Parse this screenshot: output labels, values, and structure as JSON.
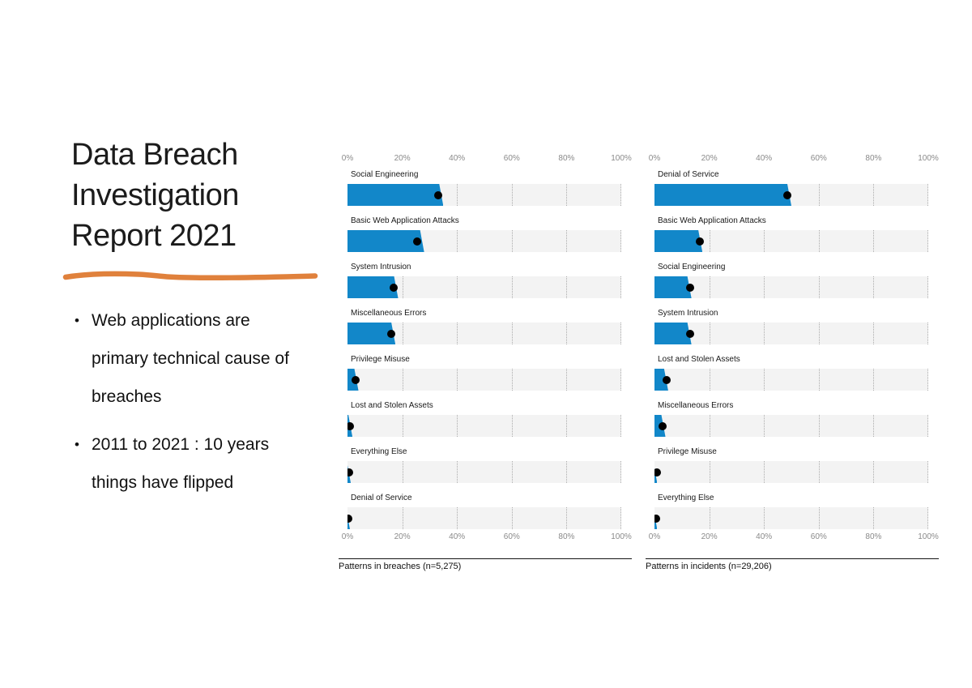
{
  "slide": {
    "title": "Data Breach\nInvestigation\nReport 2021",
    "underline_color": "#E0813C",
    "bullets": [
      {
        "marker": "•",
        "text": "Web applications are\nprimary technical cause of\nbreaches"
      },
      {
        "marker": "•",
        "text": "2011 to 2021 : 10 years\nthings have flipped"
      }
    ]
  },
  "chart_data": [
    {
      "type": "bar",
      "orientation": "horizontal",
      "caption": "Patterns in breaches (n=5,275)",
      "n": "5,275",
      "axis_ticks": [
        "0%",
        "20%",
        "40%",
        "60%",
        "80%",
        "100%"
      ],
      "xlim": [
        0,
        100
      ],
      "grid": "dotted verticals at 20/40/60/80/100",
      "bar_color": "#1287C9",
      "dot_color": "#000000",
      "track_color": "#f3f3f3",
      "rows": [
        {
          "label": "Social Engineering",
          "bar_pct": 35,
          "dot_pct": 33
        },
        {
          "label": "Basic Web Application Attacks",
          "bar_pct": 28,
          "dot_pct": 25.5
        },
        {
          "label": "System Intrusion",
          "bar_pct": 18.5,
          "dot_pct": 17
        },
        {
          "label": "Miscellaneous Errors",
          "bar_pct": 17.5,
          "dot_pct": 16
        },
        {
          "label": "Privilege Misuse",
          "bar_pct": 4,
          "dot_pct": 3
        },
        {
          "label": "Lost and Stolen Assets",
          "bar_pct": 1.8,
          "dot_pct": 1
        },
        {
          "label": "Everything Else",
          "bar_pct": 1.2,
          "dot_pct": 0.7
        },
        {
          "label": "Denial of Service",
          "bar_pct": 0.6,
          "dot_pct": 0.4
        }
      ]
    },
    {
      "type": "bar",
      "orientation": "horizontal",
      "caption": "Patterns in incidents (n=29,206)",
      "n": "29,206",
      "axis_ticks": [
        "0%",
        "20%",
        "40%",
        "60%",
        "80%",
        "100%"
      ],
      "xlim": [
        0,
        100
      ],
      "grid": "dotted verticals at 20/40/60/80/100",
      "bar_color": "#1287C9",
      "dot_color": "#000000",
      "track_color": "#f3f3f3",
      "rows": [
        {
          "label": "Denial of Service",
          "bar_pct": 50,
          "dot_pct": 48.5
        },
        {
          "label": "Basic Web Application Attacks",
          "bar_pct": 17.5,
          "dot_pct": 16.5
        },
        {
          "label": "Social Engineering",
          "bar_pct": 13.5,
          "dot_pct": 13
        },
        {
          "label": "System Intrusion",
          "bar_pct": 13.5,
          "dot_pct": 13
        },
        {
          "label": "Lost and Stolen Assets",
          "bar_pct": 5,
          "dot_pct": 4.3
        },
        {
          "label": "Miscellaneous Errors",
          "bar_pct": 4,
          "dot_pct": 3
        },
        {
          "label": "Privilege Misuse",
          "bar_pct": 1,
          "dot_pct": 0.8
        },
        {
          "label": "Everything Else",
          "bar_pct": 1,
          "dot_pct": 0.7
        }
      ]
    }
  ]
}
